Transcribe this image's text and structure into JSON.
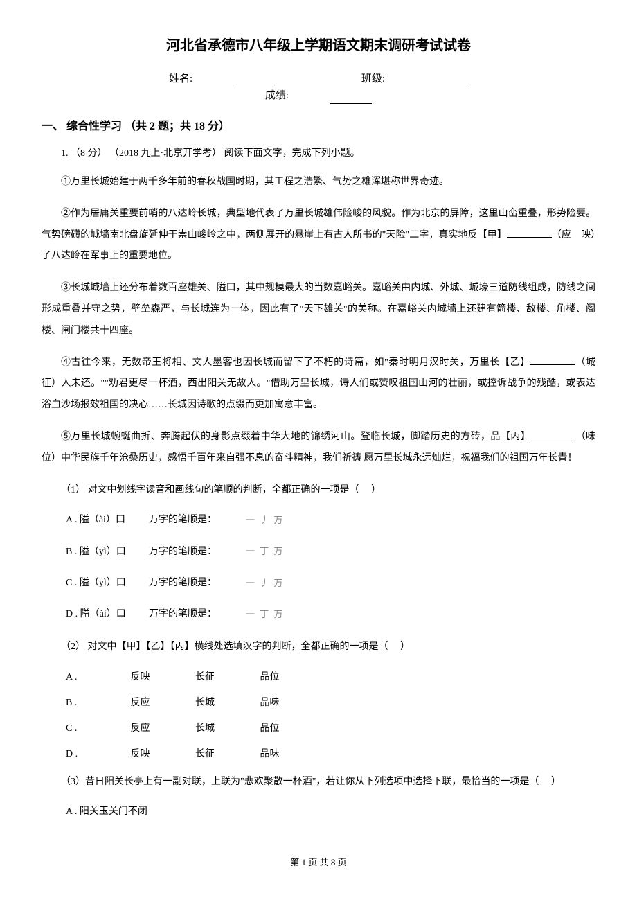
{
  "title": "河北省承德市八年级上学期语文期末调研考试试卷",
  "info": {
    "name_label": "姓名:",
    "class_label": "班级:",
    "score_label": "成绩:"
  },
  "section1": {
    "header": "一、 综合性学习 （共 2 题；共 18 分）",
    "q1_intro": "1. （8 分） （2018 九上·北京开学考） 阅读下面文字，完成下列小题。",
    "para1": "①万里长城始建于两千多年前的春秋战国时期，其工程之浩繁、气势之雄浑堪称世界奇迹。",
    "para2_part1": "②作为居庸关重要前哨的八达岭长城，典型地代表了万里长城雄伟险峻的风貌。作为北京的屏障，这里山峦重叠，形势险要。气势磅礴的城墙南北盘旋延伸于崇山峻岭之中，两侧展开的悬崖上有古人所书的\"天险\"二字，真实地反【甲】",
    "para2_part2": "（应　映）了八达岭在军事上的重要地位。",
    "para3": "③长城城墙上还分布着数百座雄关、隘口，其中规模最大的当数嘉峪关。嘉峪关由内城、外城、城壕三道防线组成，防线之间形成重叠并守之势，壁垒森严，与长城连为一体，因此有了\"天下雄关\"的美称。在嘉峪关内城墙上还建有箭楼、敌楼、角楼、阁楼、闸门楼共十四座。",
    "para4_part1": "④古往今来，无数帝王将相、文人墨客也因长城而留下了不朽的诗篇，如\"秦时明月汉时关，万里长【乙】",
    "para4_part2": "（城　征）人未还。\"\"劝君更尽一杯酒，西出阳关无故人。\"借助万里长城，诗人们或赞叹祖国山河的壮丽，或控诉战争的残酷，或表达浴血沙场报效祖国的决心……长城因诗歌的点缀而更加寓意丰富。",
    "para5_part1": "⑤万里长城蜿蜒曲折、奔腾起伏的身影点缀着中华大地的锦绣河山。登临长城，脚踏历史的方砖，品【丙】",
    "para5_part2": "（味　位）中华民族千年沧桑历史，感悟千百年来自强不息的奋斗精神，我们祈祷 愿万里长城永远灿烂，祝福我们的祖国万年长青！",
    "sub_q1": "（1） 对文中划线字读音和画线句的笔顺的判断，全都正确的一项是（　 ）",
    "opt_a": {
      "label": "A . 隘（ài）口",
      "text": "万字的笔顺是：",
      "stroke": "一 丿 万"
    },
    "opt_b": {
      "label": "B . 隘（yì）口",
      "text": "万字的笔顺是：",
      "stroke": "一 丁 万"
    },
    "opt_c": {
      "label": "C . 隘（yì）口",
      "text": "万字的笔顺是：",
      "stroke": "一 丿 万"
    },
    "opt_d": {
      "label": "D . 隘（ài）口",
      "text": "万字的笔顺是：",
      "stroke": "一 丁 万"
    },
    "sub_q2": "（2） 对文中【甲】【乙】【丙】横线处选填汉字的判断，全都正确的一项是（　 ）",
    "opt2_a": {
      "label": "A .",
      "c1": "反映",
      "c2": "长征",
      "c3": "品位"
    },
    "opt2_b": {
      "label": "B .",
      "c1": "反应",
      "c2": "长城",
      "c3": "品味"
    },
    "opt2_c": {
      "label": "C .",
      "c1": "反应",
      "c2": "长城",
      "c3": "品位"
    },
    "opt2_d": {
      "label": "D .",
      "c1": "反映",
      "c2": "长征",
      "c3": "品味"
    },
    "sub_q3": "（3）昔日阳关长亭上有一副对联，上联为\"悲欢聚散一杯酒\"，若让你从下列选项中选择下联，最恰当的一项是（　 ）",
    "opt3_a": "A . 阳关玉关门不闭"
  },
  "footer": "第 1 页 共 8 页"
}
